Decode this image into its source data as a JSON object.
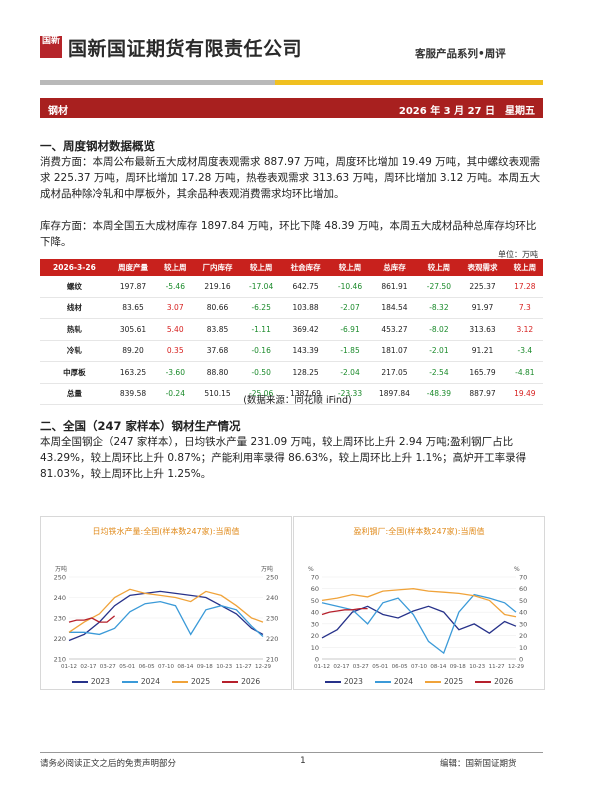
{
  "header": {
    "logo_text": "国新",
    "company": "国新国证期货有限责任公司",
    "series": "客服产品系列•周评"
  },
  "band": {
    "left": "钢材",
    "right": "2026 年 3 月 27 日　星期五"
  },
  "section1": {
    "title": "一、周度钢材数据概览",
    "para1": "消费方面：本周公布最新五大成材周度表观需求 887.97 万吨，周度环比增加 19.49 万吨，其中螺纹表观需求 225.37 万吨，周环比增加 17.28 万吨，热卷表观需求 313.63 万吨，周环比增加 3.12 万吨。本周五大成材品种除冷轧和中厚板外，其余品种表观消费需求均环比增加。",
    "para2": "库存方面：本周全国五大成材库存 1897.84 万吨，环比下降 48.39 万吨，本周五大成材品种总库存均环比下降。",
    "unit": "单位：万吨",
    "table": {
      "headers": [
        "2026-3-26",
        "周度产量",
        "较上周",
        "厂内库存",
        "较上周",
        "社会库存",
        "较上周",
        "总库存",
        "较上周",
        "表观需求",
        "较上周"
      ],
      "rows": [
        [
          "螺纹",
          "197.87",
          "-5.46",
          "219.16",
          "-17.04",
          "642.75",
          "-10.46",
          "861.91",
          "-27.50",
          "225.37",
          "17.28"
        ],
        [
          "线材",
          "83.65",
          "3.07",
          "80.66",
          "-6.25",
          "103.88",
          "-2.07",
          "184.54",
          "-8.32",
          "91.97",
          "7.3"
        ],
        [
          "热轧",
          "305.61",
          "5.40",
          "83.85",
          "-1.11",
          "369.42",
          "-6.91",
          "453.27",
          "-8.02",
          "313.63",
          "3.12"
        ],
        [
          "冷轧",
          "89.20",
          "0.35",
          "37.68",
          "-0.16",
          "143.39",
          "-1.85",
          "181.07",
          "-2.01",
          "91.21",
          "-3.4"
        ],
        [
          "中厚板",
          "163.25",
          "-3.60",
          "88.80",
          "-0.50",
          "128.25",
          "-2.04",
          "217.05",
          "-2.54",
          "165.79",
          "-4.81"
        ],
        [
          "总量",
          "839.58",
          "-0.24",
          "510.15",
          "-25.06",
          "1387.69",
          "-23.33",
          "1897.84",
          "-48.39",
          "887.97",
          "19.49"
        ]
      ]
    },
    "source": "(数据来源：同花顺 iFind)"
  },
  "section2": {
    "title": "二、全国（247 家样本）钢材生产情况",
    "para": "本周全国钢企（247 家样本），日均铁水产量 231.09 万吨，较上周环比上升 2.94 万吨;盈利钢厂占比 43.29%，较上周环比上升 0.87%；产能利用率录得 86.63%，较上周环比上升 1.1%；高炉开工率录得 81.03%，较上周环比上升 1.25%。"
  },
  "chart_data": [
    {
      "type": "line",
      "title": "日均铁水产量:全国(样本数247家):当周值",
      "ylabel": "万吨",
      "ylim": [
        210,
        250
      ],
      "yticks": [
        210,
        220,
        230,
        240,
        250
      ],
      "xticks": [
        "01-12",
        "02-17",
        "03-27",
        "05-01",
        "06-05",
        "07-10",
        "08-14",
        "09-18",
        "10-23",
        "11-27",
        "12-29"
      ],
      "series": [
        {
          "name": "2023",
          "color": "#27328a",
          "x": [
            0,
            4,
            8,
            12,
            16,
            20,
            24,
            28,
            32,
            36,
            40,
            44,
            48,
            51
          ],
          "values": [
            219,
            222,
            228,
            236,
            241,
            242,
            243,
            242,
            241,
            240,
            236,
            232,
            225,
            222
          ]
        },
        {
          "name": "2024",
          "color": "#3b9ad8",
          "x": [
            0,
            4,
            8,
            12,
            16,
            20,
            24,
            28,
            32,
            36,
            40,
            44,
            48,
            51
          ],
          "values": [
            223,
            223,
            222,
            225,
            233,
            237,
            238,
            236,
            222,
            234,
            236,
            234,
            226,
            221
          ]
        },
        {
          "name": "2025",
          "color": "#f0a33a",
          "x": [
            0,
            4,
            8,
            12,
            16,
            20,
            24,
            28,
            32,
            36,
            40,
            44,
            48,
            51
          ],
          "values": [
            223,
            228,
            232,
            240,
            244,
            242,
            241,
            240,
            238,
            243,
            241,
            236,
            230,
            228
          ]
        },
        {
          "name": "2026",
          "color": "#b6202c",
          "x": [
            0,
            2,
            4,
            6,
            8,
            10,
            12
          ],
          "values": [
            228,
            229,
            229,
            230,
            228,
            228,
            231
          ]
        }
      ]
    },
    {
      "type": "line",
      "title": "盈利钢厂:全国(样本数247家):当周值",
      "ylabel": "%",
      "ylim": [
        0,
        70
      ],
      "yticks": [
        0,
        10,
        20,
        30,
        40,
        50,
        60,
        70
      ],
      "xticks": [
        "01-12",
        "02-17",
        "03-27",
        "05-01",
        "06-05",
        "07-10",
        "08-14",
        "09-18",
        "10-23",
        "11-27",
        "12-29"
      ],
      "series": [
        {
          "name": "2023",
          "color": "#27328a",
          "x": [
            0,
            4,
            8,
            12,
            16,
            20,
            24,
            28,
            32,
            36,
            40,
            44,
            48,
            51
          ],
          "values": [
            18,
            25,
            40,
            45,
            38,
            35,
            41,
            45,
            40,
            25,
            30,
            22,
            32,
            28
          ]
        },
        {
          "name": "2024",
          "color": "#3b9ad8",
          "x": [
            0,
            4,
            8,
            12,
            16,
            20,
            24,
            28,
            32,
            36,
            40,
            44,
            48,
            51
          ],
          "values": [
            48,
            45,
            42,
            30,
            48,
            52,
            38,
            15,
            5,
            40,
            55,
            52,
            48,
            40
          ]
        },
        {
          "name": "2025",
          "color": "#f0a33a",
          "x": [
            0,
            4,
            8,
            12,
            16,
            20,
            24,
            28,
            32,
            36,
            40,
            44,
            48,
            51
          ],
          "values": [
            50,
            52,
            55,
            53,
            58,
            59,
            60,
            58,
            57,
            56,
            54,
            50,
            38,
            36
          ]
        },
        {
          "name": "2026",
          "color": "#b6202c",
          "x": [
            0,
            2,
            4,
            6,
            8,
            10,
            12
          ],
          "values": [
            38,
            40,
            41,
            42,
            42,
            43,
            43
          ]
        }
      ]
    }
  ],
  "footer": {
    "left": "请务必阅读正文之后的免责声明部分",
    "page": "1",
    "right": "编辑：国新国证期货"
  }
}
